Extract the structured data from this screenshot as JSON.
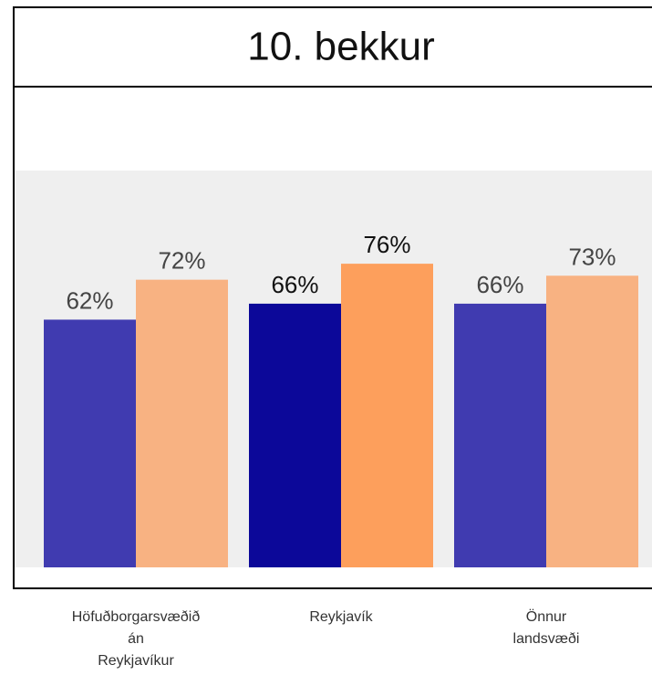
{
  "chart_data": {
    "type": "bar",
    "title": "10. bekkur",
    "categories": [
      "Höfuðborgarsvæðið\nán\nReykjavíkur",
      "Reykjavík",
      "Önnur\nlandsvæði"
    ],
    "series": [
      {
        "colors": [
          "#403bb0",
          "#0c0899",
          "#403bb0"
        ],
        "values": [
          62,
          66,
          66
        ],
        "value_labels": [
          "62%",
          "66%",
          "66%"
        ]
      },
      {
        "colors": [
          "#f8b282",
          "#fd9f5c",
          "#f8b282"
        ],
        "values": [
          72,
          76,
          73
        ],
        "value_labels": [
          "72%",
          "76%",
          "73%"
        ]
      }
    ],
    "ylim": [
      0,
      100
    ]
  }
}
